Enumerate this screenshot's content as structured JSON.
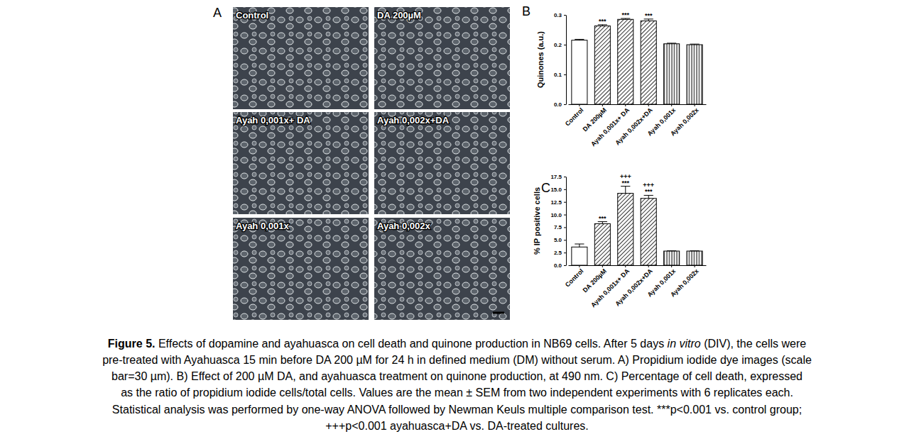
{
  "panel_a": {
    "label": "A",
    "images": [
      {
        "label": "Control"
      },
      {
        "label": "DA 200µM"
      },
      {
        "label": "Ayah 0,001x+ DA"
      },
      {
        "label": "Ayah 0,002x+DA"
      },
      {
        "label": "Ayah 0,001x"
      },
      {
        "label": "Ayah 0,002x"
      }
    ]
  },
  "chart_data": [
    {
      "type": "bar",
      "title": "B",
      "y_label": "Quinones (a.u.)",
      "categories": [
        "Control",
        "DA 200µM",
        "Ayah 0,001x+ DA",
        "Ayah 0,002x+DA",
        "Ayah 0,001x",
        "Ayah 0,002x"
      ],
      "values": [
        0.215,
        0.263,
        0.285,
        0.28,
        0.203,
        0.2
      ],
      "errors": [
        0.003,
        0.004,
        0.003,
        0.006,
        0.002,
        0.002
      ],
      "annotations_vs_control": [
        null,
        "***",
        "***",
        "***",
        null,
        null
      ],
      "color": "#000000",
      "ylim": [
        0,
        0.3
      ],
      "yticks": [
        {
          "value": 0,
          "label": "0.0"
        },
        {
          "value": 0.1,
          "label": "0.1"
        },
        {
          "value": 0.2,
          "label": "0.2"
        },
        {
          "value": 0.3,
          "label": "0.3"
        }
      ]
    },
    {
      "type": "bar",
      "title": "C",
      "y_label": "% IP positive cells",
      "categories": [
        "Control",
        "DA 200µM",
        "Ayah 0,001x+ DA",
        "Ayah 0,002x+DA",
        "Ayah 0,001x",
        "Ayah 0,002x"
      ],
      "values": [
        3.6,
        8.2,
        14.2,
        13.2,
        2.8,
        2.8
      ],
      "errors": [
        0.6,
        0.4,
        1.4,
        0.6,
        0.05,
        0.05
      ],
      "annotations_vs_control": [
        null,
        "***",
        "***",
        "***",
        null,
        null
      ],
      "annotations_vs_da": [
        null,
        null,
        "+++",
        "+++",
        null,
        null
      ],
      "color": "#000000",
      "ylim": [
        0,
        17.5
      ],
      "yticks": [
        {
          "value": 0,
          "label": "0.0"
        },
        {
          "value": 2.5,
          "label": "2.5"
        },
        {
          "value": 5,
          "label": "5.0"
        },
        {
          "value": 7.5,
          "label": "7.5"
        },
        {
          "value": 10,
          "label": "10.0"
        },
        {
          "value": 12.5,
          "label": "12.5"
        },
        {
          "value": 15,
          "label": "15.0"
        },
        {
          "value": 17.5,
          "label": "17.5"
        }
      ]
    }
  ],
  "caption": {
    "lines": [
      [
        {
          "text": "Figure 5.",
          "style": "bold"
        },
        {
          "text": " Effects of dopamine and ayahuasca on cell death and quinone production in NB69 cells. After 5 days ",
          "style": "normal"
        },
        {
          "text": "in vitro",
          "style": "italic"
        },
        {
          "text": " (DIV), the cells were",
          "style": "normal"
        }
      ],
      [
        {
          "text": "pre-treated with Ayahuasca 15 min before DA 200 µM for 24 h in defined medium (DM) without serum. A) Propidium iodide dye images (scale",
          "style": "normal"
        }
      ],
      [
        {
          "text": "bar=30 µm). B) Effect of 200 µM DA, and ayahuasca treatment on quinone production, at 490 nm. C) Percentage of cell death, expressed",
          "style": "normal"
        }
      ],
      [
        {
          "text": "as the ratio of propidium iodide cells/total cells. Values are the mean ± SEM from two independent experiments with 6 replicates each.",
          "style": "normal"
        }
      ],
      [
        {
          "text": "Statistical analysis was performed by one-way ANOVA followed by Newman Keuls multiple comparison test. ***p<0.001 vs. control group;",
          "style": "normal"
        }
      ],
      [
        {
          "text": "+++p<0.001 ayahuasca+DA vs. DA-treated cultures.",
          "style": "normal"
        }
      ]
    ]
  }
}
